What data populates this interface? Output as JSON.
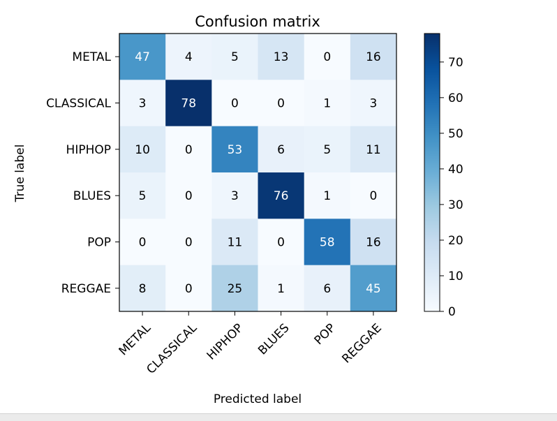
{
  "chart_data": {
    "type": "heatmap",
    "title": "Confusion matrix",
    "xlabel": "Predicted label",
    "ylabel": "True label",
    "x_categories": [
      "METAL",
      "CLASSICAL",
      "HIPHOP",
      "BLUES",
      "POP",
      "REGGAE"
    ],
    "y_categories": [
      "METAL",
      "CLASSICAL",
      "HIPHOP",
      "BLUES",
      "POP",
      "REGGAE"
    ],
    "values": [
      [
        47,
        4,
        5,
        13,
        0,
        16
      ],
      [
        3,
        78,
        0,
        0,
        1,
        3
      ],
      [
        10,
        0,
        53,
        6,
        5,
        11
      ],
      [
        5,
        0,
        3,
        76,
        1,
        0
      ],
      [
        0,
        0,
        11,
        0,
        58,
        16
      ],
      [
        8,
        0,
        25,
        1,
        6,
        45
      ]
    ],
    "colormap": "Blues",
    "colorbar": {
      "min": 0,
      "max": 78,
      "ticks": [
        0,
        10,
        20,
        30,
        40,
        50,
        60,
        70
      ]
    },
    "x_tick_rotation": 45,
    "grid": false
  }
}
